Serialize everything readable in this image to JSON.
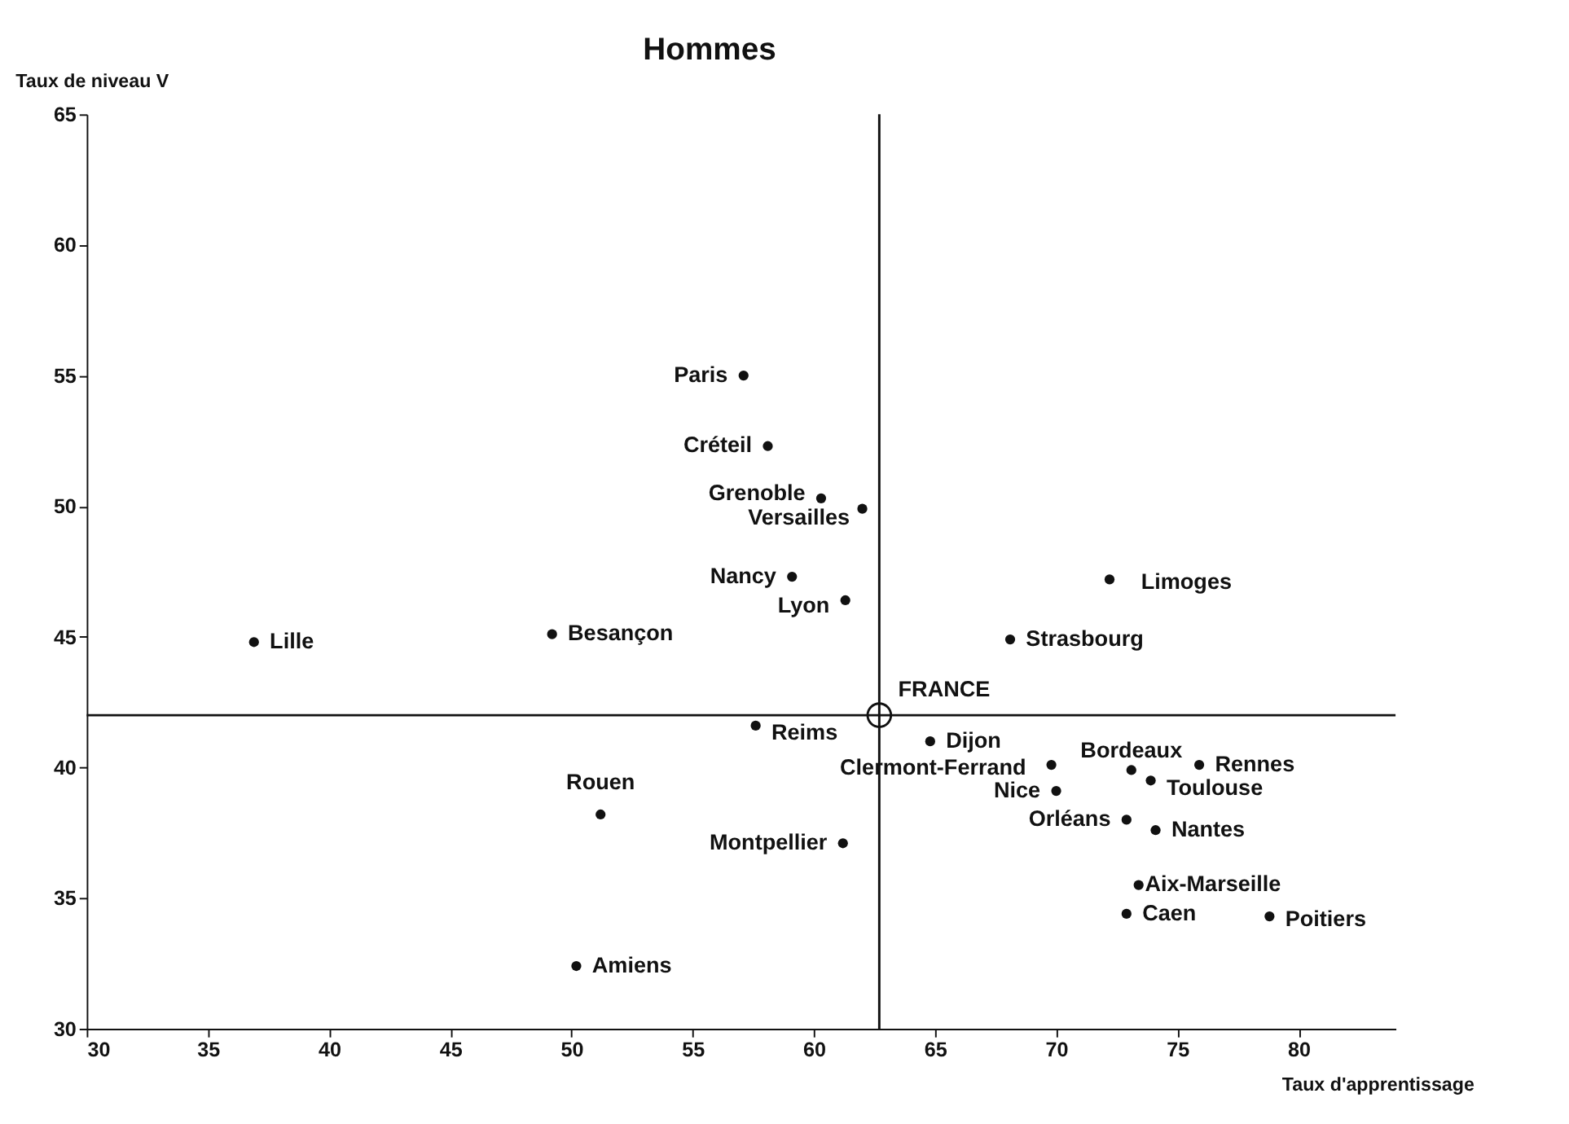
{
  "chart_data": {
    "type": "scatter",
    "title": "Hommes",
    "xlabel": "Taux d'apprentissage",
    "ylabel": "Taux de niveau V",
    "xlim": [
      30,
      84
    ],
    "ylim": [
      30,
      65
    ],
    "xticks": [
      30,
      35,
      40,
      45,
      50,
      55,
      60,
      65,
      70,
      75,
      80
    ],
    "yticks": [
      30,
      35,
      40,
      45,
      50,
      55,
      60,
      65
    ],
    "grid": false,
    "marker": "circle",
    "series": [
      {
        "name": "Paris",
        "color": "#111111",
        "x": [
          57.1
        ],
        "values": [
          55.0
        ]
      },
      {
        "name": "Créteil",
        "color": "#111111",
        "x": [
          58.1
        ],
        "values": [
          52.3
        ]
      },
      {
        "name": "Grenoble",
        "color": "#111111",
        "x": [
          60.3
        ],
        "values": [
          50.3
        ]
      },
      {
        "name": "Versailles",
        "color": "#111111",
        "x": [
          62.0
        ],
        "values": [
          49.9
        ]
      },
      {
        "name": "Nancy",
        "color": "#111111",
        "x": [
          59.1
        ],
        "values": [
          47.3
        ]
      },
      {
        "name": "Lyon",
        "color": "#111111",
        "x": [
          61.3
        ],
        "values": [
          46.4
        ]
      },
      {
        "name": "Lille",
        "color": "#111111",
        "x": [
          36.9
        ],
        "values": [
          44.8
        ]
      },
      {
        "name": "Besançon",
        "color": "#111111",
        "x": [
          49.2
        ],
        "values": [
          45.1
        ]
      },
      {
        "name": "Limoges",
        "color": "#111111",
        "x": [
          72.2
        ],
        "values": [
          47.2
        ]
      },
      {
        "name": "Strasbourg",
        "color": "#111111",
        "x": [
          68.1
        ],
        "values": [
          44.9
        ]
      },
      {
        "name": "Reims",
        "color": "#111111",
        "x": [
          57.6
        ],
        "values": [
          41.6
        ]
      },
      {
        "name": "Dijon",
        "color": "#111111",
        "x": [
          64.8
        ],
        "values": [
          41.0
        ]
      },
      {
        "name": "Clermont-Ferrand",
        "color": "#111111",
        "x": [
          69.8
        ],
        "values": [
          40.1
        ]
      },
      {
        "name": "Bordeaux",
        "color": "#111111",
        "x": [
          73.1
        ],
        "values": [
          39.9
        ]
      },
      {
        "name": "Rennes",
        "color": "#111111",
        "x": [
          75.9
        ],
        "values": [
          40.1
        ]
      },
      {
        "name": "Toulouse",
        "color": "#111111",
        "x": [
          73.9
        ],
        "values": [
          39.5
        ]
      },
      {
        "name": "Nice",
        "color": "#111111",
        "x": [
          70.0
        ],
        "values": [
          39.1
        ]
      },
      {
        "name": "Orléans",
        "color": "#111111",
        "x": [
          72.9
        ],
        "values": [
          38.0
        ]
      },
      {
        "name": "Nantes",
        "color": "#111111",
        "x": [
          74.1
        ],
        "values": [
          37.6
        ]
      },
      {
        "name": "Rouen",
        "color": "#111111",
        "x": [
          51.2
        ],
        "values": [
          38.2
        ]
      },
      {
        "name": "Montpellier",
        "color": "#111111",
        "x": [
          61.2
        ],
        "values": [
          37.1
        ]
      },
      {
        "name": "Aix-Marseille",
        "color": "#111111",
        "x": [
          73.4
        ],
        "values": [
          35.5
        ]
      },
      {
        "name": "Caen",
        "color": "#111111",
        "x": [
          72.9
        ],
        "values": [
          34.4
        ]
      },
      {
        "name": "Poitiers",
        "color": "#111111",
        "x": [
          78.8
        ],
        "values": [
          34.3
        ]
      },
      {
        "name": "Amiens",
        "color": "#111111",
        "x": [
          50.2
        ],
        "values": [
          32.4
        ]
      },
      {
        "name": "FRANCE",
        "color": "#111111",
        "x": [
          62.7
        ],
        "values": [
          42.0
        ]
      }
    ],
    "ref_lines": [
      {
        "axis": "x",
        "value": 62.7,
        "color": "#111111"
      },
      {
        "axis": "y",
        "value": 42.0,
        "color": "#111111"
      }
    ]
  }
}
